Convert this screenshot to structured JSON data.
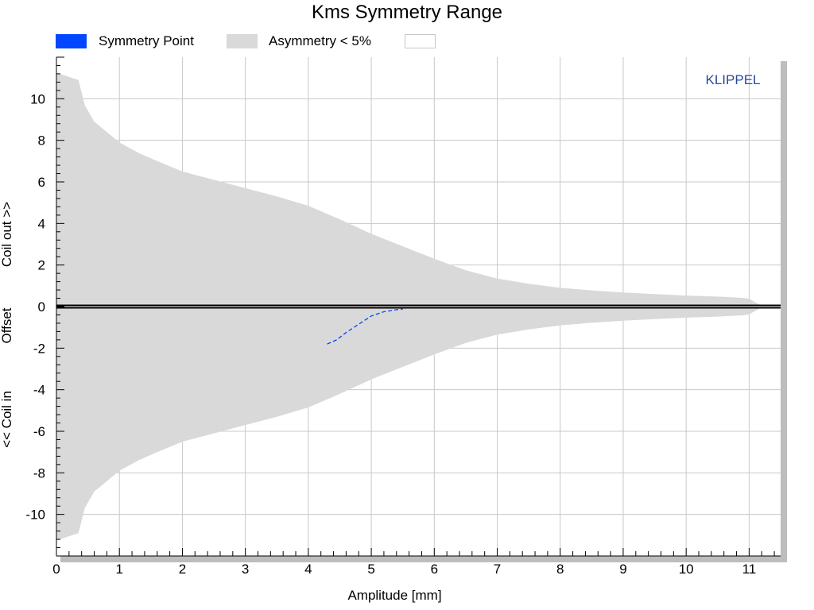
{
  "chart_data": {
    "type": "area",
    "title": "Kms Symmetry Range",
    "xlabel": "Amplitude [mm]",
    "ylabel_parts": [
      "Coil out >>",
      "Offset",
      "<< Coil in"
    ],
    "watermark": "KLIPPEL",
    "xlim": [
      0,
      11.5
    ],
    "ylim": [
      -12,
      12
    ],
    "xticks": [
      0,
      1,
      2,
      3,
      4,
      5,
      6,
      7,
      8,
      9,
      10,
      11
    ],
    "yticks": [
      10,
      8,
      6,
      4,
      2,
      0,
      -2,
      -4,
      -6,
      -8,
      -10
    ],
    "grid": true,
    "legend_position": "top",
    "colors": {
      "symmetry_point": "#0047ff",
      "asymmetry_region": "#d9d9d9",
      "grid": "#c8c8c8",
      "frame_shadow": "#bdbdbd",
      "watermark": "#2a4a9a"
    },
    "legend": [
      {
        "label": "Symmetry Point",
        "color": "#0047ff"
      },
      {
        "label": "Asymmetry < 5%",
        "color": "#d9d9d9"
      },
      {
        "label": "",
        "color": "#ffffff"
      }
    ],
    "series": [
      {
        "name": "Asymmetry < 5%",
        "kind": "band",
        "x": [
          0,
          0.15,
          0.35,
          0.45,
          0.6,
          0.8,
          1.0,
          1.3,
          1.6,
          2.0,
          2.5,
          3.0,
          3.5,
          4.0,
          4.5,
          5.0,
          5.5,
          6.0,
          6.5,
          7.0,
          7.5,
          8.0,
          8.5,
          9.0,
          9.5,
          10.0,
          10.5,
          10.9,
          11.0,
          11.1,
          11.2
        ],
        "upper": [
          11.25,
          11.1,
          10.9,
          9.7,
          8.9,
          8.4,
          7.9,
          7.4,
          7.0,
          6.5,
          6.1,
          5.7,
          5.3,
          4.85,
          4.2,
          3.5,
          2.9,
          2.3,
          1.75,
          1.35,
          1.1,
          0.9,
          0.78,
          0.68,
          0.6,
          0.53,
          0.48,
          0.42,
          0.38,
          0.2,
          0.05
        ],
        "lower": [
          -11.25,
          -11.1,
          -10.9,
          -9.7,
          -8.9,
          -8.4,
          -7.9,
          -7.4,
          -7.0,
          -6.5,
          -6.1,
          -5.7,
          -5.3,
          -4.85,
          -4.2,
          -3.5,
          -2.9,
          -2.3,
          -1.75,
          -1.35,
          -1.1,
          -0.9,
          -0.78,
          -0.68,
          -0.6,
          -0.53,
          -0.48,
          -0.42,
          -0.38,
          -0.2,
          -0.05
        ]
      },
      {
        "name": "Symmetry Point",
        "kind": "line",
        "x": [
          4.3,
          4.45,
          4.6,
          4.8,
          5.0,
          5.2,
          5.4,
          5.5
        ],
        "y": [
          -1.8,
          -1.6,
          -1.25,
          -0.85,
          -0.45,
          -0.25,
          -0.15,
          -0.12
        ]
      }
    ]
  }
}
